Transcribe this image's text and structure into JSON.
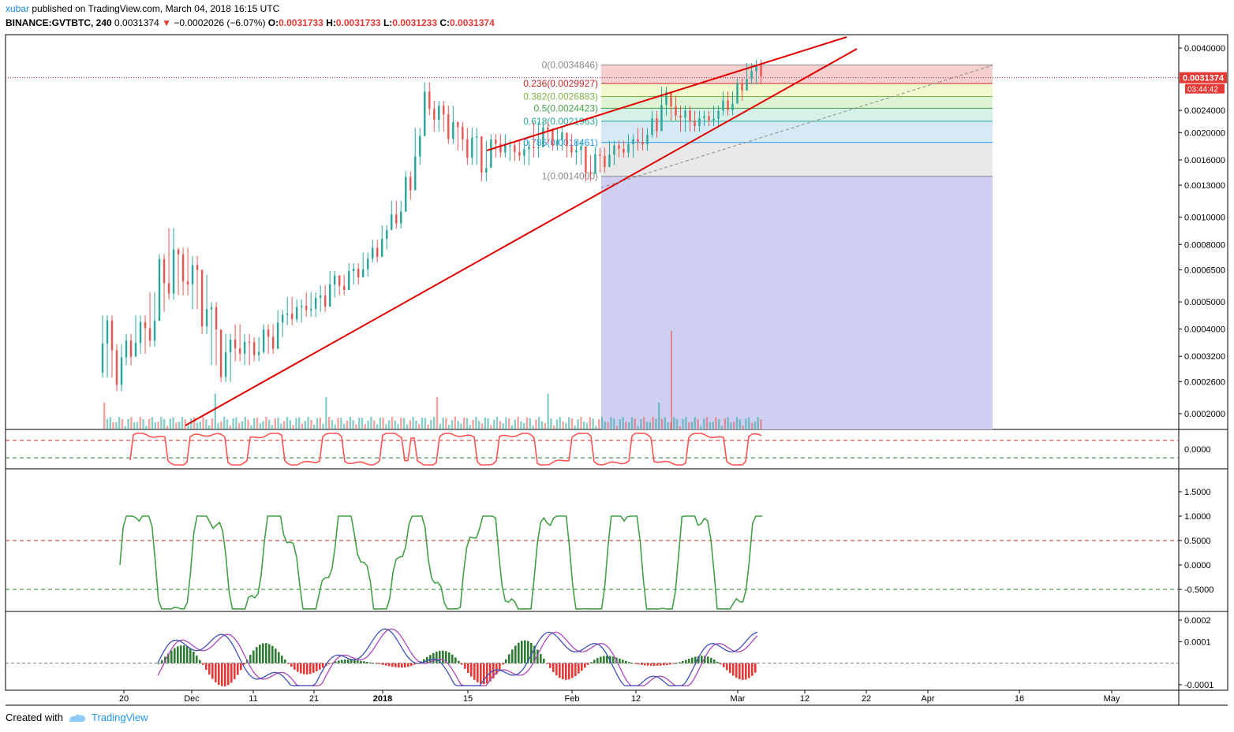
{
  "header": {
    "user": "xubar",
    "published": "published on TradingView.com, March 04, 2018 16:15 UTC",
    "symbol": "BINANCE:GVTBTC, 240",
    "last": "0.0031374",
    "change": "−0.0002026 (−6.07%)",
    "o_label": "O:",
    "o": "0.0031733",
    "h_label": "H:",
    "h": "0.0031733",
    "l_label": "L:",
    "l": "0.0031233",
    "c_label": "C:",
    "c": "0.0031374"
  },
  "price_tags": {
    "last": "0.0031374",
    "countdown": "03:44:42"
  },
  "footer": {
    "created": "Created with",
    "brand": "TradingView"
  },
  "colors": {
    "up": "#26a69a",
    "down": "#ef5350",
    "trend": "#e00000",
    "osc1": "#ff5252",
    "osc2": "#43a047",
    "macd": "#3f51b5",
    "signal": "#ab47bc"
  },
  "chart_data": [
    {
      "type": "candlestick",
      "symbol": "BINANCE:GVTBTC",
      "interval": "240",
      "scale": "log",
      "y_ticks": [
        "0.0040000",
        "0.0024000",
        "0.0020000",
        "0.0016000",
        "0.0013000",
        "0.0010000",
        "0.0008000",
        "0.0006500",
        "0.0005000",
        "0.0004000",
        "0.0003200",
        "0.0002600",
        "0.0002000"
      ],
      "x_ticks": [
        "20",
        "Dec",
        "11",
        "21",
        "2018",
        "15",
        "Feb",
        "12",
        "Mar",
        "12",
        "22",
        "Apr",
        "16",
        "May"
      ],
      "fib_levels": [
        {
          "label": "0(0.0034846)",
          "ratio": 0,
          "price": 0.0034846,
          "color": "#888888"
        },
        {
          "label": "0.236(0.0029927)",
          "ratio": 0.236,
          "price": 0.0029927,
          "color": "#c62828"
        },
        {
          "label": "0.382(0.0026883)",
          "ratio": 0.382,
          "price": 0.0026883,
          "color": "#7cb342"
        },
        {
          "label": "0.5(0.0024423)",
          "ratio": 0.5,
          "price": 0.0024423,
          "color": "#43a047"
        },
        {
          "label": "0.618(0.0021963)",
          "ratio": 0.618,
          "price": 0.0021963,
          "color": "#26a69a"
        },
        {
          "label": "0.786(0.0018461)",
          "ratio": 0.786,
          "price": 0.0018461,
          "color": "#2196f3"
        },
        {
          "label": "1(0.0014000)",
          "ratio": 1,
          "price": 0.0014,
          "color": "#888888"
        }
      ],
      "price_path": [
        [
          0.00043,
          0.00028
        ],
        [
          0.00034,
          0.00025
        ],
        [
          0.00037,
          0.00031
        ],
        [
          0.00043,
          0.00034
        ],
        [
          0.00052,
          0.00036
        ],
        [
          0.00071,
          0.00048
        ],
        [
          0.00088,
          0.00053
        ],
        [
          0.00075,
          0.00055
        ],
        [
          0.0007,
          0.00049
        ],
        [
          0.0006,
          0.0004
        ],
        [
          0.00048,
          0.00031
        ],
        [
          0.00037,
          0.00027
        ],
        [
          0.0004,
          0.00032
        ],
        [
          0.00037,
          0.00031
        ],
        [
          0.00036,
          0.00032
        ],
        [
          0.0004,
          0.00034
        ],
        [
          0.00045,
          0.00039
        ],
        [
          0.0005,
          0.00043
        ],
        [
          0.00049,
          0.00044
        ],
        [
          0.00052,
          0.00046
        ],
        [
          0.00055,
          0.00048
        ],
        [
          0.00062,
          0.00054
        ],
        [
          0.0006,
          0.00055
        ],
        [
          0.00066,
          0.0006
        ],
        [
          0.00072,
          0.00064
        ],
        [
          0.0008,
          0.00072
        ],
        [
          0.0009,
          0.0008
        ],
        [
          0.0011,
          0.00095
        ],
        [
          0.0014,
          0.0012
        ],
        [
          0.002,
          0.0016
        ],
        [
          0.0029,
          0.0024
        ],
        [
          0.0025,
          0.0021
        ],
        [
          0.0024,
          0.0019
        ],
        [
          0.0021,
          0.0018
        ],
        [
          0.002,
          0.0016
        ],
        [
          0.0018,
          0.0014
        ],
        [
          0.0019,
          0.0017
        ],
        [
          0.0019,
          0.0017
        ],
        [
          0.0018,
          0.00165
        ],
        [
          0.0018,
          0.0016
        ],
        [
          0.0021,
          0.0017
        ],
        [
          0.0021,
          0.0019
        ],
        [
          0.002,
          0.0018
        ],
        [
          0.0019,
          0.0017
        ],
        [
          0.0018,
          0.0016
        ],
        [
          0.0016,
          0.0014
        ],
        [
          0.0017,
          0.0015
        ],
        [
          0.0018,
          0.0016
        ],
        [
          0.0018,
          0.0017
        ],
        [
          0.0019,
          0.0017
        ],
        [
          0.002,
          0.0018
        ],
        [
          0.0023,
          0.002
        ],
        [
          0.0028,
          0.0024
        ],
        [
          0.0026,
          0.0023
        ],
        [
          0.0024,
          0.0021
        ],
        [
          0.0023,
          0.0021
        ],
        [
          0.0023,
          0.0022
        ],
        [
          0.0024,
          0.0022
        ],
        [
          0.0027,
          0.0024
        ],
        [
          0.003,
          0.0027
        ],
        [
          0.0034,
          0.0031
        ],
        [
          0.0035,
          0.0031
        ]
      ],
      "last_price": 0.0031374
    },
    {
      "type": "line",
      "name_label": "",
      "y_ticks": [
        "0.0000"
      ],
      "levels": [
        "upper-dashed-red",
        "lower-dashed-green"
      ]
    },
    {
      "type": "line",
      "y_ticks": [
        "1.5000",
        "1.0000",
        "0.5000",
        "0.0000",
        "-0.5000"
      ],
      "levels": [
        0.5,
        -0.5
      ],
      "range": [
        -0.9,
        1.5
      ]
    },
    {
      "type": "line",
      "y_ticks": [
        "0.0002",
        "0.0001",
        "-0.0001"
      ],
      "range": [
        -0.00011,
        0.00022
      ],
      "zero_line": true
    }
  ]
}
